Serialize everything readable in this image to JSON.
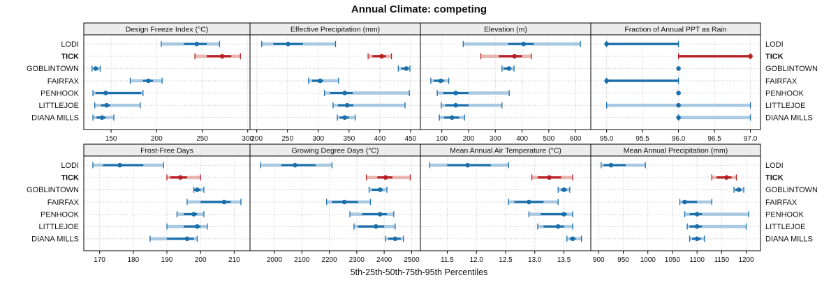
{
  "title": "Annual Climate: competing",
  "footer": "5th-25th-50th-75th-95th Percentiles",
  "colors": {
    "blue": "#1b6fab",
    "blue_light": "#a8c9e1",
    "red": "#b72025",
    "red_light": "#eab4b0",
    "header_bg": "#ececec",
    "grid": "#bdbdbd",
    "border": "#000000",
    "text": "#111111"
  },
  "chart_data": {
    "type": "scatter",
    "subtype": "dot-plot-with-percentile-whiskers",
    "title": "Annual Climate: competing",
    "xlabel": "5th-25th-50th-75th-95th Percentiles",
    "legend_position": "none",
    "grid": "dotted",
    "sites": [
      "LODI",
      "TICK",
      "GOBLINTOWN",
      "FAIRFAX",
      "PENHOOK",
      "LITTLEJOE",
      "DIANA MILLS"
    ],
    "highlight_site": "TICK",
    "percentiles": [
      5,
      25,
      50,
      75,
      95
    ],
    "panels": [
      {
        "label": "Design Freeze Index (°C)",
        "xlim": [
          120,
          302.5
        ],
        "ticks": [
          150,
          200,
          250,
          300
        ],
        "decimals": 0,
        "values": {
          "LODI": [
            205,
            230,
            244,
            255,
            269
          ],
          "TICK": [
            242,
            255,
            272,
            282,
            292
          ],
          "GOBLINTOWN": [
            129,
            131,
            133,
            136,
            138
          ],
          "FAIRFAX": [
            171,
            185,
            191,
            196,
            206
          ],
          "PENHOOK": [
            130,
            133,
            144,
            183,
            185
          ],
          "LITTLEJOE": [
            132,
            139,
            145,
            149,
            182
          ],
          "DIANA MILLS": [
            130,
            134,
            140,
            144,
            153
          ]
        }
      },
      {
        "label": "Effective Precipitation (mm)",
        "xlim": [
          189,
          466
        ],
        "ticks": [
          200,
          250,
          300,
          350,
          400,
          450
        ],
        "decimals": 0,
        "values": {
          "LODI": [
            208,
            227,
            251,
            275,
            328
          ],
          "TICK": [
            381,
            388,
            403,
            410,
            419
          ],
          "GOBLINTOWN": [
            430,
            435,
            443,
            447,
            449
          ],
          "FAIRFAX": [
            284,
            290,
            303,
            308,
            333
          ],
          "PENHOOK": [
            310,
            319,
            343,
            356,
            448
          ],
          "LITTLEJOE": [
            324,
            332,
            347,
            357,
            441
          ],
          "DIANA MILLS": [
            331,
            335,
            343,
            350,
            360
          ]
        }
      },
      {
        "label": "Elevation (m)",
        "xlim": [
          20,
          657
        ],
        "ticks": [
          100,
          200,
          300,
          400,
          500,
          600
        ],
        "decimals": 0,
        "values": {
          "LODI": [
            180,
            348,
            406,
            444,
            618
          ],
          "TICK": [
            246,
            313,
            372,
            400,
            435
          ],
          "GOBLINTOWN": [
            325,
            331,
            351,
            360,
            370
          ],
          "FAIRFAX": [
            59,
            70,
            96,
            109,
            126
          ],
          "PENHOOK": [
            83,
            105,
            152,
            200,
            352
          ],
          "LITTLEJOE": [
            98,
            113,
            152,
            200,
            325
          ],
          "DIANA MILLS": [
            91,
            109,
            138,
            165,
            185
          ]
        }
      },
      {
        "label": "Fraction of Annual PPT as Rain",
        "xlim": [
          94.78,
          97.14
        ],
        "ticks": [
          95.0,
          95.5,
          96.0,
          96.5,
          97.0
        ],
        "decimals": 1,
        "values": {
          "LODI": [
            95,
            95,
            95,
            96,
            96
          ],
          "TICK": [
            96,
            96,
            97,
            97,
            97
          ],
          "GOBLINTOWN": [
            96,
            96,
            96,
            96,
            96
          ],
          "FAIRFAX": [
            95,
            95,
            95,
            96,
            96
          ],
          "PENHOOK": [
            96,
            96,
            96,
            96,
            96
          ],
          "LITTLEJOE": [
            95,
            96,
            96,
            96,
            97
          ],
          "DIANA MILLS": [
            96,
            96,
            96,
            96,
            97
          ]
        }
      },
      {
        "label": "Frost-Free Days",
        "xlim": [
          165.3,
          214.7
        ],
        "ticks": [
          170,
          180,
          190,
          200,
          210
        ],
        "decimals": 0,
        "values": {
          "LODI": [
            168,
            171,
            176,
            183,
            189
          ],
          "TICK": [
            190,
            191,
            194,
            196,
            200
          ],
          "GOBLINTOWN": [
            198,
            198,
            199,
            200,
            201
          ],
          "FAIRFAX": [
            196,
            200,
            207,
            209,
            212
          ],
          "PENHOOK": [
            193,
            195,
            198,
            199,
            201
          ],
          "LITTLEJOE": [
            190,
            195,
            199,
            200,
            202
          ],
          "DIANA MILLS": [
            185,
            190,
            196,
            198,
            199
          ]
        }
      },
      {
        "label": "Growing Degree Days (°C)",
        "xlim": [
          1911,
          2532
        ],
        "ticks": [
          2000,
          2100,
          2200,
          2300,
          2400,
          2500
        ],
        "decimals": 0,
        "values": {
          "LODI": [
            1950,
            2025,
            2075,
            2150,
            2210
          ],
          "TICK": [
            2335,
            2375,
            2405,
            2430,
            2495
          ],
          "GOBLINTOWN": [
            2345,
            2355,
            2385,
            2395,
            2410
          ],
          "FAIRFAX": [
            2190,
            2210,
            2255,
            2305,
            2350
          ],
          "PENHOOK": [
            2275,
            2320,
            2385,
            2410,
            2435
          ],
          "LITTLEJOE": [
            2290,
            2305,
            2370,
            2400,
            2440
          ],
          "DIANA MILLS": [
            2405,
            2415,
            2440,
            2460,
            2470
          ]
        }
      },
      {
        "label": "Mean Annual Air Temperature (°C)",
        "xlim": [
          11.04,
          13.96
        ],
        "ticks": [
          11.5,
          12.0,
          12.5,
          13.0,
          13.5
        ],
        "decimals": 1,
        "values": {
          "LODI": [
            11.2,
            11.5,
            11.85,
            12.25,
            12.55
          ],
          "TICK": [
            12.95,
            13.05,
            13.25,
            13.45,
            13.65
          ],
          "GOBLINTOWN": [
            13.4,
            13.45,
            13.5,
            13.55,
            13.6
          ],
          "FAIRFAX": [
            12.55,
            12.65,
            12.9,
            13.15,
            13.4
          ],
          "PENHOOK": [
            12.9,
            13.1,
            13.5,
            13.55,
            13.65
          ],
          "LITTLEJOE": [
            13.05,
            13.15,
            13.4,
            13.5,
            13.65
          ],
          "DIANA MILLS": [
            13.55,
            13.6,
            13.65,
            13.7,
            13.8
          ]
        }
      },
      {
        "label": "Mean Annual Precipitation (mm)",
        "xlim": [
          884,
          1229
        ],
        "ticks": [
          900,
          950,
          1000,
          1050,
          1100,
          1150,
          1200
        ],
        "decimals": 0,
        "values": {
          "LODI": [
            905,
            910,
            925,
            955,
            995
          ],
          "TICK": [
            1130,
            1140,
            1160,
            1170,
            1180
          ],
          "GOBLINTOWN": [
            1175,
            1178,
            1185,
            1190,
            1195
          ],
          "FAIRFAX": [
            1065,
            1070,
            1075,
            1100,
            1130
          ],
          "PENHOOK": [
            1075,
            1085,
            1100,
            1110,
            1205
          ],
          "LITTLEJOE": [
            1080,
            1085,
            1100,
            1110,
            1200
          ],
          "DIANA MILLS": [
            1085,
            1090,
            1100,
            1108,
            1115
          ]
        }
      }
    ]
  }
}
